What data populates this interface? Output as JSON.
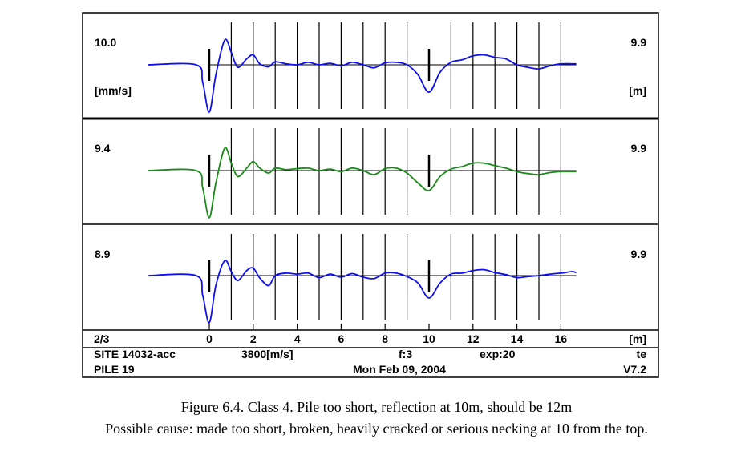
{
  "chart_data": {
    "type": "line",
    "xlabel": "[m]",
    "xlim": [
      0,
      16.7
    ],
    "x_ticks": [
      0,
      2,
      4,
      6,
      8,
      10,
      12,
      14,
      16
    ],
    "x_tick_labels": [
      "0",
      "2",
      "4",
      "6",
      "8",
      "10",
      "12",
      "14",
      "16"
    ],
    "reflection_marker_m": 10,
    "series": [
      {
        "left_label": "10.0",
        "left_unit": "[mm/s]",
        "right_label": "9.9",
        "right_unit": "[m]",
        "color": "#1010ee",
        "x": [
          -2.8,
          -0.6,
          -0.3,
          0,
          0.3,
          0.7,
          1,
          1.3,
          1.7,
          2,
          2.3,
          2.7,
          3,
          3.5,
          4,
          4.5,
          5,
          5.5,
          6,
          6.5,
          7,
          7.5,
          8,
          8.5,
          9,
          9.5,
          10,
          10.5,
          11,
          11.5,
          12,
          12.5,
          13,
          13.5,
          14,
          14.5,
          15,
          15.5,
          16,
          16.5,
          16.7
        ],
        "y": [
          0,
          0,
          -0.35,
          -0.95,
          -0.2,
          0.5,
          0.25,
          -0.05,
          0.12,
          0.2,
          0.02,
          -0.04,
          0.06,
          0.02,
          0,
          0.05,
          0,
          0.03,
          -0.02,
          0.05,
          0,
          -0.06,
          0.04,
          0.05,
          0,
          -0.2,
          -0.55,
          -0.15,
          0.05,
          0.1,
          0.18,
          0.2,
          0.15,
          0.12,
          0,
          -0.05,
          -0.08,
          -0.02,
          0.02,
          0.02,
          0.02
        ]
      },
      {
        "left_label": "9.4",
        "right_label": "9.9",
        "color": "#1a8a1a",
        "x": [
          -2.8,
          -0.6,
          -0.3,
          0,
          0.3,
          0.7,
          1,
          1.3,
          1.7,
          2,
          2.3,
          2.7,
          3,
          3.5,
          4,
          4.5,
          5,
          5.5,
          6,
          6.5,
          7,
          7.5,
          8,
          8.5,
          9,
          9.5,
          10,
          10.5,
          11,
          11.5,
          12,
          12.5,
          13,
          13.5,
          14,
          14.5,
          15,
          15.5,
          16,
          16.7
        ],
        "y": [
          0,
          0,
          -0.35,
          -0.95,
          -0.25,
          0.45,
          0.15,
          -0.12,
          0.05,
          0.18,
          0.05,
          -0.05,
          0.05,
          0.02,
          0.04,
          0.05,
          0,
          0.03,
          -0.02,
          0.05,
          0,
          -0.08,
          0.04,
          0.05,
          -0.05,
          -0.25,
          -0.4,
          -0.12,
          0.03,
          0.08,
          0.15,
          0.15,
          0.1,
          0.05,
          -0.02,
          -0.06,
          -0.08,
          -0.04,
          -0.02,
          -0.02
        ]
      },
      {
        "left_label": "8.9",
        "right_label": "9.9",
        "color": "#1010ee",
        "x": [
          -2.8,
          -0.6,
          -0.3,
          0,
          0.3,
          0.7,
          1,
          1.3,
          1.7,
          2,
          2.3,
          2.7,
          3,
          3.5,
          4,
          4.5,
          5,
          5.5,
          6,
          6.5,
          7,
          7.5,
          8,
          8.5,
          9,
          9.5,
          10,
          10.5,
          11,
          11.5,
          12,
          12.5,
          13,
          13.5,
          14,
          14.5,
          15,
          15.5,
          16,
          16.5,
          16.7
        ],
        "y": [
          0,
          0,
          -0.4,
          -0.95,
          -0.2,
          0.3,
          0.08,
          -0.1,
          0.1,
          0.15,
          -0.05,
          -0.2,
          0,
          0.05,
          0.03,
          0.05,
          -0.04,
          0.03,
          -0.03,
          0.04,
          -0.03,
          -0.06,
          0.05,
          0.05,
          -0.02,
          -0.15,
          -0.45,
          -0.15,
          0.03,
          0.05,
          0.1,
          0.12,
          0.06,
          0.02,
          -0.04,
          -0.02,
          0,
          0.03,
          0.05,
          0.08,
          0.06
        ]
      }
    ]
  },
  "footer": {
    "index": "2/3",
    "site": "SITE 14032-acc",
    "wave_speed": "3800[m/s]",
    "filter": "f:3",
    "exp": "exp:20",
    "code": "te",
    "pile": "PILE 19",
    "date": "Mon Feb 09, 2004",
    "version": "V7.2"
  },
  "caption": {
    "line1": "Figure 6.4. Class 4. Pile too short, reflection at 10m, should be 12m",
    "line2": "Possible cause: made too short, broken, heavily cracked or serious necking at 10 from the top."
  }
}
